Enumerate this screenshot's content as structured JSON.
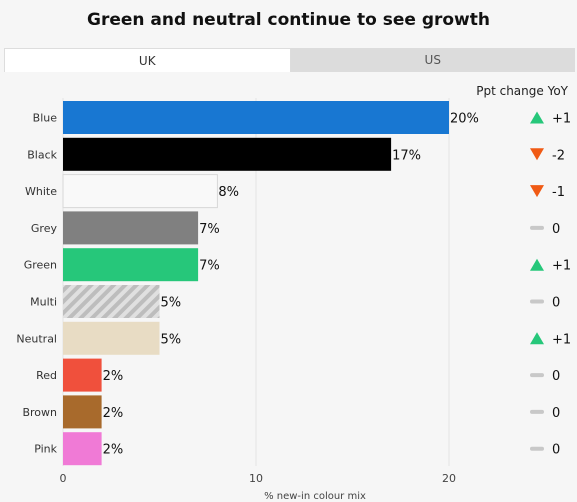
{
  "title": "Green and neutral continue to see growth",
  "tabs": [
    {
      "label": "UK",
      "active": true
    },
    {
      "label": "US",
      "active": false
    }
  ],
  "change_header": "Ppt change YoY",
  "chart_data": {
    "type": "bar",
    "orientation": "horizontal",
    "xlabel": "% new-in colour mix",
    "xlim": [
      0,
      24
    ],
    "xticks": [
      0,
      10,
      20
    ],
    "categories": [
      "Blue",
      "Black",
      "White",
      "Grey",
      "Green",
      "Multi",
      "Neutral",
      "Red",
      "Brown",
      "Pink"
    ],
    "values": [
      20,
      17,
      8,
      7,
      7,
      5,
      5,
      2,
      2,
      2
    ],
    "value_labels": [
      "20%",
      "17%",
      "8%",
      "7%",
      "7%",
      "5%",
      "5%",
      "2%",
      "2%",
      "2%"
    ],
    "colors": [
      "#1877d2",
      "#000000",
      "#f9f9f9",
      "#808080",
      "#26c77a",
      "hatch",
      "#e8dcc4",
      "#f0503c",
      "#a86a2c",
      "#f07ad6"
    ],
    "ppt_change": [
      {
        "direction": "up",
        "label": "+1"
      },
      {
        "direction": "down",
        "label": "-2"
      },
      {
        "direction": "down",
        "label": "-1"
      },
      {
        "direction": "flat",
        "label": "0"
      },
      {
        "direction": "up",
        "label": "+1"
      },
      {
        "direction": "flat",
        "label": "0"
      },
      {
        "direction": "up",
        "label": "+1"
      },
      {
        "direction": "flat",
        "label": "0"
      },
      {
        "direction": "flat",
        "label": "0"
      },
      {
        "direction": "flat",
        "label": "0"
      }
    ],
    "indicator_colors": {
      "up": "#26c77a",
      "down": "#f05a14",
      "flat": "#c8c8c8"
    }
  }
}
